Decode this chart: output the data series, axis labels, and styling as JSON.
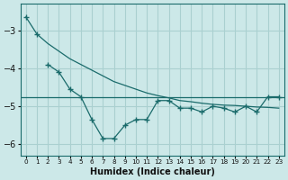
{
  "xlabel": "Humidex (Indice chaleur)",
  "background_color": "#cce8e8",
  "grid_color": "#aad0d0",
  "line_color": "#1a6b6b",
  "x_values": [
    0,
    1,
    2,
    3,
    4,
    5,
    6,
    7,
    8,
    9,
    10,
    11,
    12,
    13,
    14,
    15,
    16,
    17,
    18,
    19,
    20,
    21,
    22,
    23
  ],
  "series1": [
    -2.65,
    -3.1,
    -3.35,
    -3.55,
    -3.75,
    -3.9,
    -4.05,
    -4.2,
    -4.35,
    -4.45,
    -4.55,
    -4.65,
    -4.72,
    -4.78,
    -4.85,
    -4.88,
    -4.92,
    -4.95,
    -4.97,
    -4.98,
    -5.0,
    -5.02,
    -5.03,
    -5.05
  ],
  "series2_x": [
    2,
    3,
    4,
    5,
    6,
    7,
    8,
    9,
    10,
    11,
    12,
    13,
    14,
    15,
    16,
    17,
    18,
    19,
    20,
    21,
    22,
    23
  ],
  "series2_y": [
    -3.9,
    -4.1,
    -4.55,
    -4.75,
    -5.35,
    -5.85,
    -5.85,
    -5.5,
    -5.35,
    -5.35,
    -4.85,
    -4.85,
    -5.05,
    -5.05,
    -5.15,
    -5.0,
    -5.05,
    -5.15,
    -5.0,
    -5.15,
    -4.75,
    -4.75
  ],
  "hline_y": -4.75,
  "ylim": [
    -6.3,
    -2.3
  ],
  "yticks": [
    -3,
    -4,
    -5,
    -6
  ],
  "xlim": [
    -0.5,
    23.5
  ]
}
